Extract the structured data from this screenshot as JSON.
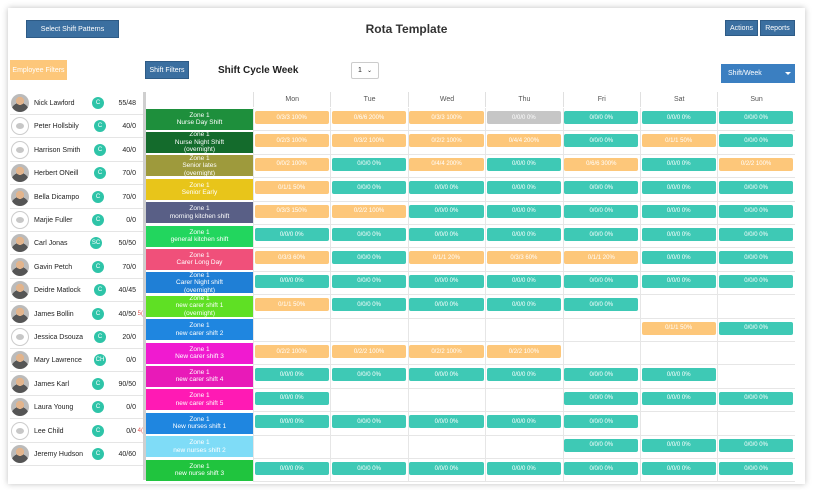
{
  "title": "Rota Template",
  "buttons": {
    "select_shift_patterns": "Select Shift Patterns",
    "actions": "Actions",
    "reports": "Reports",
    "employee_filters": "Employee Filters",
    "shift_filters": "Shift Filters"
  },
  "cycle": {
    "label": "Shift Cycle Week",
    "week_value": "1",
    "view_mode": "Shift/Week"
  },
  "days": [
    "Mon",
    "Tue",
    "Wed",
    "Thu",
    "Fri",
    "Sat",
    "Sun"
  ],
  "employees": [
    {
      "name": "Nick Lawford",
      "badge": "C",
      "hours": "55/48",
      "avatar": "photo",
      "extra": ""
    },
    {
      "name": "Peter Hollsbily",
      "badge": "C",
      "hours": "40/0",
      "avatar": "logo",
      "extra": ""
    },
    {
      "name": "Harrison Smith",
      "badge": "C",
      "hours": "40/0",
      "avatar": "logo",
      "extra": ""
    },
    {
      "name": "Herbert ONeill",
      "badge": "C",
      "hours": "70/0",
      "avatar": "photo",
      "extra": ""
    },
    {
      "name": "Bella Dicampo",
      "badge": "C",
      "hours": "70/0",
      "avatar": "photo",
      "extra": ""
    },
    {
      "name": "Marjie Fuller",
      "badge": "C",
      "hours": "0/0",
      "avatar": "logo",
      "extra": ""
    },
    {
      "name": "Carl Jonas",
      "badge": "SC",
      "hours": "50/50",
      "avatar": "photo",
      "extra": ""
    },
    {
      "name": "Gavin Petch",
      "badge": "C",
      "hours": "70/0",
      "avatar": "photo",
      "extra": ""
    },
    {
      "name": "Deidre Matlock",
      "badge": "C",
      "hours": "40/45",
      "avatar": "photo",
      "extra": ""
    },
    {
      "name": "James Bollin",
      "badge": "C",
      "hours": "40/50",
      "avatar": "photo",
      "extra": "5("
    },
    {
      "name": "Jessica Dsouza",
      "badge": "C",
      "hours": "20/0",
      "avatar": "logo",
      "extra": ""
    },
    {
      "name": "Mary Lawrence",
      "badge": "CH",
      "hours": "0/0",
      "avatar": "photo",
      "extra": ""
    },
    {
      "name": "James Karl",
      "badge": "C",
      "hours": "90/50",
      "avatar": "photo",
      "extra": ""
    },
    {
      "name": "Laura Young",
      "badge": "C",
      "hours": "0/0",
      "avatar": "photo",
      "extra": ""
    },
    {
      "name": "Lee Child",
      "badge": "C",
      "hours": "0/0",
      "avatar": "logo",
      "extra": "4("
    },
    {
      "name": "Jeremy Hudson",
      "badge": "C",
      "hours": "40/60",
      "avatar": "photo",
      "extra": ""
    }
  ],
  "shifts": [
    {
      "zone": "Zone 1",
      "name": "Nurse Day Shift",
      "sub": "",
      "color": "#1e8f3c",
      "cells": [
        [
          "o",
          "0/3/3 100%"
        ],
        [
          "o",
          "0/6/6 200%"
        ],
        [
          "o",
          "0/3/3 100%"
        ],
        [
          "x",
          "0/0/0 0%"
        ],
        [
          "g",
          "0/0/0 0%"
        ],
        [
          "g",
          "0/0/0 0%"
        ],
        [
          "g",
          "0/0/0 0%"
        ]
      ]
    },
    {
      "zone": "Zone 1",
      "name": "Nurse Night Shift",
      "sub": "(overnight)",
      "color": "#146b2c",
      "cells": [
        [
          "o",
          "0/2/3 100%"
        ],
        [
          "o",
          "0/3/2 100%"
        ],
        [
          "o",
          "0/2/2 100%"
        ],
        [
          "o",
          "0/4/4 200%"
        ],
        [
          "g",
          "0/0/0 0%"
        ],
        [
          "o",
          "0/1/1 50%"
        ],
        [
          "g",
          "0/0/0 0%"
        ]
      ]
    },
    {
      "zone": "Zone 1",
      "name": "Senior lates",
      "sub": "(overnight)",
      "color": "#9e9a3c",
      "cells": [
        [
          "o",
          "0/0/2 100%"
        ],
        [
          "g",
          "0/0/0 0%"
        ],
        [
          "o",
          "0/4/4 200%"
        ],
        [
          "g",
          "0/0/0 0%"
        ],
        [
          "o",
          "0/6/6 300%"
        ],
        [
          "g",
          "0/0/0 0%"
        ],
        [
          "o",
          "0/2/2 100%"
        ]
      ]
    },
    {
      "zone": "Zone 1",
      "name": "Senior Early",
      "sub": "",
      "color": "#e8c51a",
      "cells": [
        [
          "o",
          "0/1/1 50%"
        ],
        [
          "g",
          "0/0/0 0%"
        ],
        [
          "g",
          "0/0/0 0%"
        ],
        [
          "g",
          "0/0/0 0%"
        ],
        [
          "g",
          "0/0/0 0%"
        ],
        [
          "g",
          "0/0/0 0%"
        ],
        [
          "g",
          "0/0/0 0%"
        ]
      ]
    },
    {
      "zone": "Zone 1",
      "name": "morning kitchen shift",
      "sub": "",
      "color": "#595f86",
      "cells": [
        [
          "o",
          "0/3/3 150%"
        ],
        [
          "o",
          "0/2/2 100%"
        ],
        [
          "g",
          "0/0/0 0%"
        ],
        [
          "g",
          "0/0/0 0%"
        ],
        [
          "g",
          "0/0/0 0%"
        ],
        [
          "g",
          "0/0/0 0%"
        ],
        [
          "g",
          "0/0/0 0%"
        ]
      ]
    },
    {
      "zone": "Zone 1",
      "name": "general kitchen shift",
      "sub": "",
      "color": "#22d65e",
      "cells": [
        [
          "g",
          "0/0/0 0%"
        ],
        [
          "g",
          "0/0/0 0%"
        ],
        [
          "g",
          "0/0/0 0%"
        ],
        [
          "g",
          "0/0/0 0%"
        ],
        [
          "g",
          "0/0/0 0%"
        ],
        [
          "g",
          "0/0/0 0%"
        ],
        [
          "g",
          "0/0/0 0%"
        ]
      ]
    },
    {
      "zone": "Zone 1",
      "name": "Carer Long Day",
      "sub": "",
      "color": "#f0507a",
      "cells": [
        [
          "o",
          "0/3/3 60%"
        ],
        [
          "g",
          "0/0/0 0%"
        ],
        [
          "o",
          "0/1/1 20%"
        ],
        [
          "o",
          "0/3/3 60%"
        ],
        [
          "o",
          "0/1/1 20%"
        ],
        [
          "g",
          "0/0/0 0%"
        ],
        [
          "g",
          "0/0/0 0%"
        ]
      ]
    },
    {
      "zone": "Zone 1",
      "name": "Carer Night shift",
      "sub": "(overnight)",
      "color": "#1f7fd6",
      "cells": [
        [
          "g",
          "0/0/0 0%"
        ],
        [
          "g",
          "0/0/0 0%"
        ],
        [
          "g",
          "0/0/0 0%"
        ],
        [
          "g",
          "0/0/0 0%"
        ],
        [
          "g",
          "0/0/0 0%"
        ],
        [
          "g",
          "0/0/0 0%"
        ],
        [
          "g",
          "0/0/0 0%"
        ]
      ]
    },
    {
      "zone": "Zone 1",
      "name": "new carer shift 1",
      "sub": "(overnight)",
      "color": "#5fe024",
      "cells": [
        [
          "o",
          "0/1/1 50%"
        ],
        [
          "g",
          "0/0/0 0%"
        ],
        [
          "g",
          "0/0/0 0%"
        ],
        [
          "g",
          "0/0/0 0%"
        ],
        [
          "g",
          "0/0/0 0%"
        ],
        [
          "",
          ""
        ],
        [
          "",
          ""
        ]
      ]
    },
    {
      "zone": "Zone 1",
      "name": "new carer shift 2",
      "sub": "",
      "color": "#1f86e0",
      "cells": [
        [
          "",
          ""
        ],
        [
          "",
          ""
        ],
        [
          "",
          ""
        ],
        [
          "",
          ""
        ],
        [
          "",
          ""
        ],
        [
          "o",
          "0/1/1 50%"
        ],
        [
          "g",
          "0/0/0 0%"
        ]
      ]
    },
    {
      "zone": "Zone 1",
      "name": "New carer shift 3",
      "sub": "",
      "color": "#f01ad0",
      "cells": [
        [
          "o",
          "0/2/2 100%"
        ],
        [
          "o",
          "0/2/2 100%"
        ],
        [
          "o",
          "0/2/2 100%"
        ],
        [
          "o",
          "0/2/2 100%"
        ],
        [
          "",
          ""
        ],
        [
          "",
          ""
        ],
        [
          "",
          ""
        ]
      ]
    },
    {
      "zone": "Zone 1",
      "name": "new carer shift 4",
      "sub": "",
      "color": "#e81ab8",
      "cells": [
        [
          "g",
          "0/0/0 0%"
        ],
        [
          "g",
          "0/0/0 0%"
        ],
        [
          "g",
          "0/0/0 0%"
        ],
        [
          "g",
          "0/0/0 0%"
        ],
        [
          "g",
          "0/0/0 0%"
        ],
        [
          "g",
          "0/0/0 0%"
        ],
        [
          "",
          ""
        ]
      ]
    },
    {
      "zone": "Zone 1",
      "name": "new carer shift 5",
      "sub": "",
      "color": "#ff1ab4",
      "cells": [
        [
          "g",
          "0/0/0 0%"
        ],
        [
          "",
          ""
        ],
        [
          "",
          ""
        ],
        [
          "",
          ""
        ],
        [
          "g",
          "0/0/0 0%"
        ],
        [
          "g",
          "0/0/0 0%"
        ],
        [
          "g",
          "0/0/0 0%"
        ]
      ]
    },
    {
      "zone": "Zone 1",
      "name": "New nurses shift 1",
      "sub": "",
      "color": "#1f86e0",
      "cells": [
        [
          "g",
          "0/0/0 0%"
        ],
        [
          "g",
          "0/0/0 0%"
        ],
        [
          "g",
          "0/0/0 0%"
        ],
        [
          "g",
          "0/0/0 0%"
        ],
        [
          "g",
          "0/0/0 0%"
        ],
        [
          "",
          ""
        ],
        [
          "",
          ""
        ]
      ]
    },
    {
      "zone": "Zone 1",
      "name": "new nurses shift 2",
      "sub": "",
      "color": "#7fdcf7",
      "cells": [
        [
          "",
          ""
        ],
        [
          "",
          ""
        ],
        [
          "",
          ""
        ],
        [
          "",
          ""
        ],
        [
          "g",
          "0/0/0 0%"
        ],
        [
          "g",
          "0/0/0 0%"
        ],
        [
          "g",
          "0/0/0 0%"
        ]
      ]
    },
    {
      "zone": "Zone 1",
      "name": "new nurse shift 3",
      "sub": "",
      "color": "#20c43e",
      "cells": [
        [
          "g",
          "0/0/0 0%"
        ],
        [
          "g",
          "0/0/0 0%"
        ],
        [
          "g",
          "0/0/0 0%"
        ],
        [
          "g",
          "0/0/0 0%"
        ],
        [
          "g",
          "0/0/0 0%"
        ],
        [
          "g",
          "0/0/0 0%"
        ],
        [
          "g",
          "0/0/0 0%"
        ]
      ]
    }
  ]
}
